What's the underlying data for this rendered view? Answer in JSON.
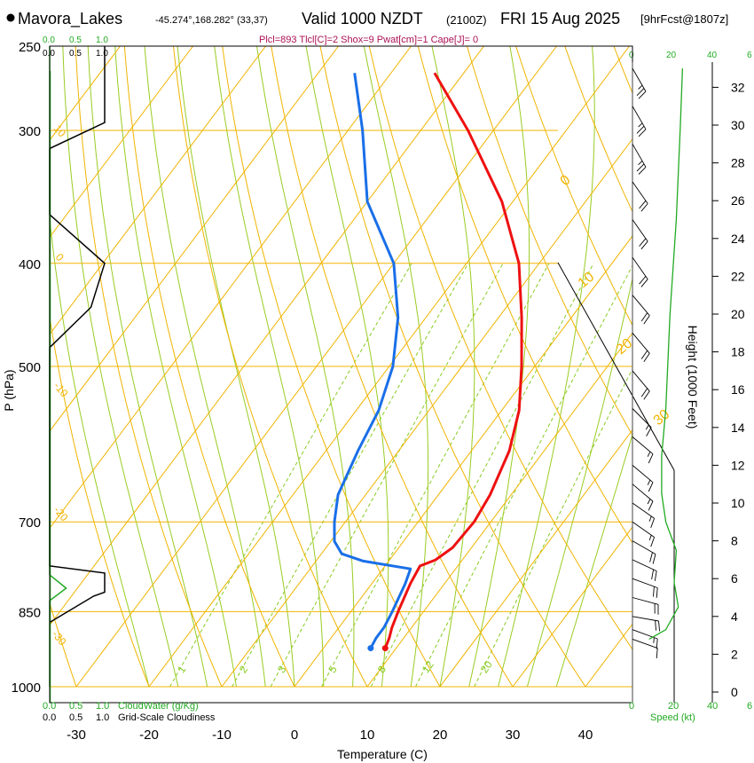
{
  "header": {
    "station": "Mavora_Lakes",
    "coords": "-45.274°,168.282° (33,37)",
    "valid_label": "Valid 1000 NZDT",
    "utc": "(2100Z)",
    "date": "FRI 15 Aug 2025",
    "forecast": "[9hrFcst@1807z]",
    "params": "Plcl=893 Tlcl[C]=2 Shox=9 Pwat[cm]=1 Cape[J]= 0"
  },
  "colors": {
    "temperature": "#ee1111",
    "dewpoint": "#1a6fe8",
    "isotherm": "#f0b400",
    "dry_adiabat": "#f0b400",
    "moist_adiabat": "#99cc22",
    "mixing_ratio": "#88cc22",
    "cloud": "#22aa22",
    "param_text": "#aa1155"
  },
  "labels": {
    "cloudwater_top": [
      "0.0",
      "0.5",
      "1.0"
    ],
    "cloudiness_top": [
      "0.0",
      "0.5",
      "1.0"
    ],
    "cloudwater_bottom": [
      "0.0",
      "0.5",
      "1.0"
    ],
    "cloudwater_title": "CloudWater (g/Kg)",
    "cloudiness_bottom": [
      "0.0",
      "0.5",
      "1.0"
    ],
    "cloudiness_title": "Grid-Scale Cloudiness",
    "speed_ticks": [
      "0",
      "20",
      "40",
      "6"
    ],
    "speed_title": "Speed (kt)"
  },
  "chart_data": {
    "type": "skew-t",
    "xlabel": "Temperature (C)",
    "ylabel": "P (hPa)",
    "y2label": "Height (1000 Feet)",
    "x_ticks": [
      -30,
      -20,
      -10,
      0,
      10,
      20,
      30,
      40
    ],
    "p_ticks": [
      250,
      300,
      400,
      500,
      700,
      850,
      1000
    ],
    "height_ticks": [
      0,
      2,
      4,
      6,
      8,
      10,
      12,
      14,
      16,
      18,
      20,
      22,
      24,
      26,
      28,
      30,
      32
    ],
    "mixing_ratio_labels": [
      "1",
      "2",
      "3",
      "5",
      "8",
      "12",
      "20"
    ],
    "moist_adiabat_labels": [
      "0",
      "10",
      "20",
      "30"
    ],
    "dry_adiabat_labels": [
      "10",
      "0",
      "-10",
      "-20",
      "-30"
    ],
    "temperature": [
      {
        "p": 920,
        "t": 8.5
      },
      {
        "p": 900,
        "t": 8
      },
      {
        "p": 880,
        "t": 7.3
      },
      {
        "p": 850,
        "t": 6.5
      },
      {
        "p": 800,
        "t": 5.3
      },
      {
        "p": 770,
        "t": 4.8
      },
      {
        "p": 760,
        "t": 6.3
      },
      {
        "p": 740,
        "t": 7.4
      },
      {
        "p": 700,
        "t": 7.7
      },
      {
        "p": 660,
        "t": 7.1
      },
      {
        "p": 600,
        "t": 5.2
      },
      {
        "p": 550,
        "t": 2.4
      },
      {
        "p": 500,
        "t": -1.8
      },
      {
        "p": 450,
        "t": -6.8
      },
      {
        "p": 400,
        "t": -12.8
      },
      {
        "p": 350,
        "t": -21.5
      },
      {
        "p": 300,
        "t": -33.5
      },
      {
        "p": 265,
        "t": -44
      }
    ],
    "dewpoint": [
      {
        "p": 920,
        "t": 6.5
      },
      {
        "p": 900,
        "t": 6.2
      },
      {
        "p": 880,
        "t": 6.2
      },
      {
        "p": 850,
        "t": 5.7
      },
      {
        "p": 800,
        "t": 4.6
      },
      {
        "p": 775,
        "t": 3.8
      },
      {
        "p": 762,
        "t": -3.5
      },
      {
        "p": 750,
        "t": -7.2
      },
      {
        "p": 730,
        "t": -9.5
      },
      {
        "p": 700,
        "t": -11.5
      },
      {
        "p": 660,
        "t": -13.8
      },
      {
        "p": 600,
        "t": -15.6
      },
      {
        "p": 550,
        "t": -16.9
      },
      {
        "p": 500,
        "t": -19.5
      },
      {
        "p": 450,
        "t": -23.8
      },
      {
        "p": 400,
        "t": -30
      },
      {
        "p": 350,
        "t": -40
      },
      {
        "p": 300,
        "t": -48
      },
      {
        "p": 265,
        "t": -55
      }
    ],
    "cloudiness_profile": [
      {
        "p": 250,
        "v": 1.0
      },
      {
        "p": 295,
        "v": 1.0
      },
      {
        "p": 312,
        "v": 0.0
      },
      {
        "p": 360,
        "v": 0.0
      },
      {
        "p": 400,
        "v": 1.0
      },
      {
        "p": 440,
        "v": 0.75
      },
      {
        "p": 480,
        "v": 0.0
      },
      {
        "p": 770,
        "v": 0.0
      },
      {
        "p": 782,
        "v": 1.0
      },
      {
        "p": 815,
        "v": 1.0
      },
      {
        "p": 822,
        "v": 0.8
      },
      {
        "p": 870,
        "v": 0.0
      }
    ],
    "cloudwater_profile": [
      {
        "p": 250,
        "v": 0.0
      },
      {
        "p": 785,
        "v": 0.0
      },
      {
        "p": 808,
        "v": 0.3
      },
      {
        "p": 830,
        "v": 0.0
      },
      {
        "p": 1000,
        "v": 0.0
      }
    ],
    "wind_speed_profile": [
      {
        "h": 2.8,
        "kt": 8
      },
      {
        "h": 3.3,
        "kt": 16
      },
      {
        "h": 4.5,
        "kt": 22
      },
      {
        "h": 5.8,
        "kt": 20
      },
      {
        "h": 7.5,
        "kt": 21
      },
      {
        "h": 9.0,
        "kt": 16
      },
      {
        "h": 10.5,
        "kt": 14
      },
      {
        "h": 12.5,
        "kt": 14
      },
      {
        "h": 15,
        "kt": 16
      },
      {
        "h": 20,
        "kt": 18
      },
      {
        "h": 25,
        "kt": 21
      },
      {
        "h": 30,
        "kt": 23
      },
      {
        "h": 33,
        "kt": 24
      }
    ],
    "wind_barbs": [
      {
        "h": 2.8,
        "dir": 290,
        "kt": 10
      },
      {
        "h": 3.3,
        "dir": 290,
        "kt": 15
      },
      {
        "h": 4.0,
        "dir": 280,
        "kt": 20
      },
      {
        "h": 5.0,
        "dir": 285,
        "kt": 20
      },
      {
        "h": 6.0,
        "dir": 290,
        "kt": 20
      },
      {
        "h": 7.0,
        "dir": 295,
        "kt": 20
      },
      {
        "h": 8.0,
        "dir": 300,
        "kt": 20
      },
      {
        "h": 9.0,
        "dir": 305,
        "kt": 15
      },
      {
        "h": 10.0,
        "dir": 305,
        "kt": 15
      },
      {
        "h": 11.0,
        "dir": 310,
        "kt": 15
      },
      {
        "h": 12.0,
        "dir": 310,
        "kt": 15
      },
      {
        "h": 13.5,
        "dir": 310,
        "kt": 15
      },
      {
        "h": 15.0,
        "dir": 315,
        "kt": 15
      },
      {
        "h": 17.0,
        "dir": 320,
        "kt": 20
      },
      {
        "h": 19.0,
        "dir": 320,
        "kt": 20
      },
      {
        "h": 21.0,
        "dir": 320,
        "kt": 20
      },
      {
        "h": 23.0,
        "dir": 325,
        "kt": 20
      },
      {
        "h": 25.0,
        "dir": 325,
        "kt": 20
      },
      {
        "h": 27.0,
        "dir": 325,
        "kt": 20
      },
      {
        "h": 29.0,
        "dir": 330,
        "kt": 25
      },
      {
        "h": 31.0,
        "dir": 330,
        "kt": 25
      },
      {
        "h": 33.0,
        "dir": 330,
        "kt": 25
      }
    ]
  }
}
